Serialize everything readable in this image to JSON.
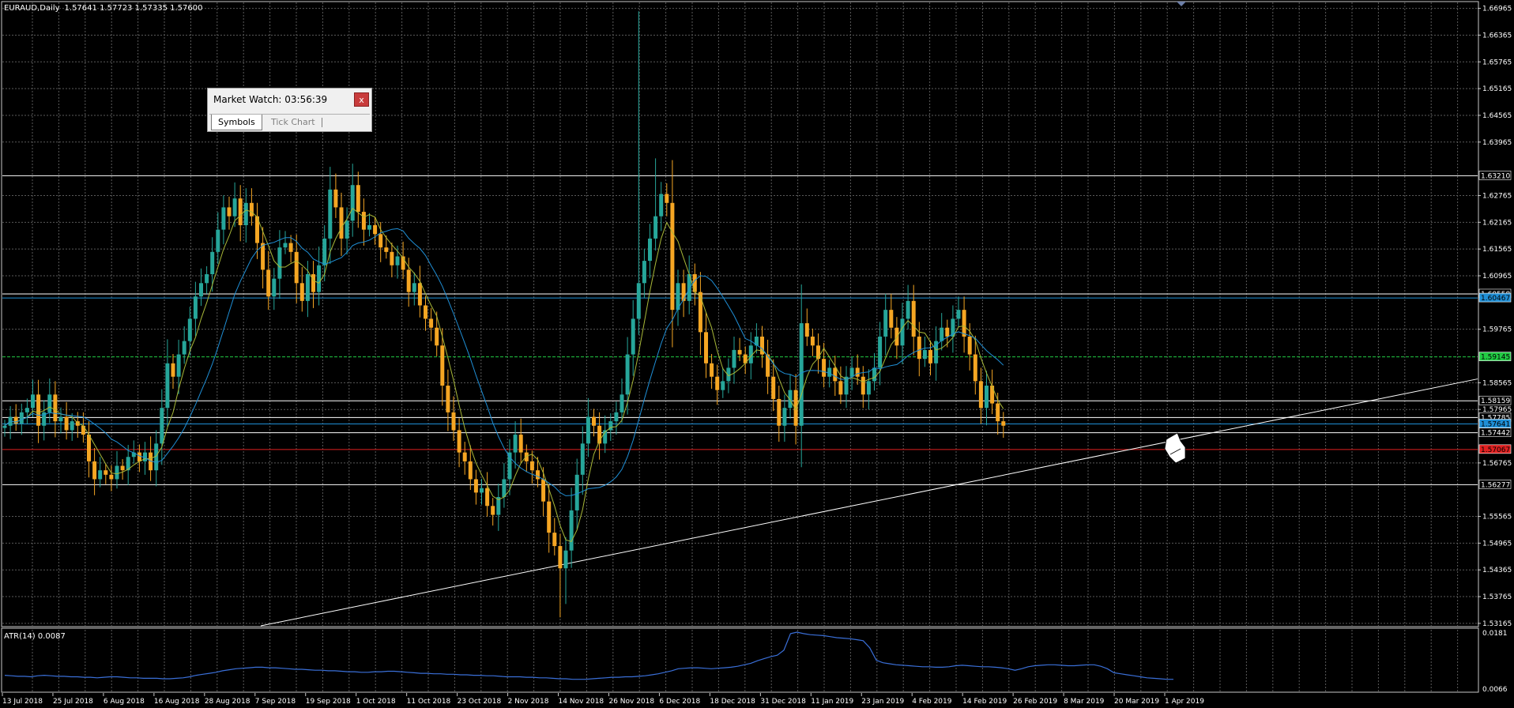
{
  "chart_info": {
    "symbol_label": "EURAUD,Daily",
    "ohlc": "1.57641 1.57723 1.57335 1.57600",
    "indicator_label": "ATR(14) 0.0087"
  },
  "market_watch": {
    "title": "Market Watch: 03:56:39",
    "close_glyph": "x",
    "tabs": [
      {
        "label": "Symbols",
        "active": true
      },
      {
        "label": "Tick Chart",
        "active": false
      }
    ]
  },
  "colors": {
    "background": "#000000",
    "grid": "#5a5a5a",
    "bull_candle": "#26a69a",
    "bear_candle": "#f5a623",
    "ma_fast": "#a8b838",
    "ma_slow": "#1f8fd6",
    "atr_line": "#3a6fd8",
    "trendline": "#ffffff"
  },
  "chart_data": {
    "type": "candlestick",
    "price_axis_ticks": [
      "1.66965",
      "1.66365",
      "1.65765",
      "1.65165",
      "1.64565",
      "1.63965",
      "1.62765",
      "1.62165",
      "1.61565",
      "1.60965",
      "1.59765",
      "1.58565",
      "1.57965",
      "1.56765",
      "1.55565",
      "1.54965",
      "1.54365",
      "1.53765",
      "1.53165"
    ],
    "ylim": [
      1.5311,
      1.671
    ],
    "date_labels": [
      "13 Jul 2018",
      "25 Jul 2018",
      "6 Aug 2018",
      "16 Aug 2018",
      "28 Aug 2018",
      "7 Sep 2018",
      "19 Sep 2018",
      "1 Oct 2018",
      "11 Oct 2018",
      "23 Oct 2018",
      "2 Nov 2018",
      "14 Nov 2018",
      "26 Nov 2018",
      "6 Dec 2018",
      "18 Dec 2018",
      "31 Dec 2018",
      "11 Jan 2019",
      "23 Jan 2019",
      "4 Feb 2019",
      "14 Feb 2019",
      "26 Feb 2019",
      "8 Mar 2019",
      "20 Mar 2019",
      "1 Apr 2019"
    ],
    "horizontal_levels": [
      {
        "price": 1.6321,
        "label": "1.63210",
        "color": "#ffffff"
      },
      {
        "price": 1.60558,
        "label": "1.60558",
        "color": "#ffffff"
      },
      {
        "price": 1.60467,
        "label": "1.60467",
        "color": "#1f8fd6"
      },
      {
        "price": 1.59145,
        "label": "1.59145",
        "color": "#22cc44"
      },
      {
        "price": 1.58159,
        "label": "1.58159",
        "color": "#ffffff"
      },
      {
        "price": 1.57785,
        "label": "1.57785",
        "color": "#ffffff"
      },
      {
        "price": 1.57641,
        "label": "1.57641",
        "color": "#1f8fd6"
      },
      {
        "price": 1.57442,
        "label": "1.57442",
        "color": "#ffffff"
      },
      {
        "price": 1.57067,
        "label": "1.57067",
        "color": "#e02020"
      },
      {
        "price": 1.56277,
        "label": "1.56277",
        "color": "#ffffff"
      }
    ],
    "trendline": {
      "start_price": 1.5311,
      "start_date": "7 Sep 2018",
      "end_price": 1.5865,
      "end_date": "after 1 Apr 2019"
    },
    "atr_axis_ticks": [
      "0.0181",
      "0.0066"
    ],
    "atr_current": "0.0087",
    "closes": [
      1.576,
      1.578,
      1.5765,
      1.579,
      1.58,
      1.583,
      1.576,
      1.579,
      1.583,
      1.577,
      1.578,
      1.575,
      1.577,
      1.576,
      1.574,
      1.568,
      1.564,
      1.566,
      1.565,
      1.564,
      1.567,
      1.566,
      1.569,
      1.57,
      1.568,
      1.57,
      1.566,
      1.572,
      1.58,
      1.59,
      1.587,
      1.592,
      1.595,
      1.6,
      1.605,
      1.608,
      1.61,
      1.615,
      1.62,
      1.625,
      1.623,
      1.627,
      1.621,
      1.626,
      1.623,
      1.617,
      1.611,
      1.605,
      1.609,
      1.616,
      1.617,
      1.615,
      1.608,
      1.604,
      1.61,
      1.606,
      1.612,
      1.618,
      1.629,
      1.625,
      1.618,
      1.622,
      1.63,
      1.624,
      1.62,
      1.621,
      1.619,
      1.616,
      1.615,
      1.612,
      1.614,
      1.611,
      1.606,
      1.608,
      1.603,
      1.6,
      1.598,
      1.594,
      1.585,
      1.579,
      1.575,
      1.57,
      1.568,
      1.564,
      1.561,
      1.562,
      1.558,
      1.556,
      1.56,
      1.564,
      1.57,
      1.574,
      1.57,
      1.568,
      1.566,
      1.564,
      1.559,
      1.552,
      1.549,
      1.544,
      1.548,
      1.557,
      1.565,
      1.572,
      1.578,
      1.576,
      1.572,
      1.575,
      1.577,
      1.579,
      1.583,
      1.592,
      1.6,
      1.608,
      1.613,
      1.618,
      1.623,
      1.628,
      1.626,
      1.602,
      1.608,
      1.604,
      1.61,
      1.606,
      1.597,
      1.59,
      1.587,
      1.584,
      1.586,
      1.589,
      1.593,
      1.592,
      1.59,
      1.594,
      1.596,
      1.592,
      1.587,
      1.582,
      1.576,
      1.58,
      1.584,
      1.576,
      1.599,
      1.596,
      1.594,
      1.591,
      1.587,
      1.589,
      1.586,
      1.583,
      1.587,
      1.589,
      1.587,
      1.583,
      1.586,
      1.589,
      1.596,
      1.602,
      1.598,
      1.594,
      1.6,
      1.604,
      1.596,
      1.591,
      1.593,
      1.59,
      1.595,
      1.598,
      1.596,
      1.6,
      1.602,
      1.596,
      1.592,
      1.586,
      1.58,
      1.585,
      1.581,
      1.577,
      1.576
    ],
    "atr": [
      0.0095,
      0.0094,
      0.0093,
      0.0093,
      0.0092,
      0.0094,
      0.0095,
      0.0094,
      0.0093,
      0.0093,
      0.0092,
      0.0092,
      0.0091,
      0.0091,
      0.009,
      0.0091,
      0.0092,
      0.0092,
      0.0091,
      0.009,
      0.009,
      0.0089,
      0.0089,
      0.0089,
      0.0088,
      0.0088,
      0.0089,
      0.009,
      0.0092,
      0.0095,
      0.0097,
      0.0099,
      0.0101,
      0.0104,
      0.0106,
      0.0108,
      0.0109,
      0.011,
      0.0111,
      0.0111,
      0.011,
      0.011,
      0.0109,
      0.0108,
      0.0107,
      0.0107,
      0.0106,
      0.0105,
      0.0105,
      0.0104,
      0.0104,
      0.0103,
      0.0102,
      0.0102,
      0.0101,
      0.0101,
      0.0102,
      0.0102,
      0.0103,
      0.0103,
      0.0102,
      0.0101,
      0.01,
      0.0099,
      0.0099,
      0.0098,
      0.0098,
      0.0097,
      0.0097,
      0.0096,
      0.0096,
      0.0095,
      0.0095,
      0.0094,
      0.0094,
      0.0093,
      0.0092,
      0.0092,
      0.0092,
      0.0091,
      0.0091,
      0.009,
      0.009,
      0.0089,
      0.0088,
      0.0088,
      0.0087,
      0.0087,
      0.0087,
      0.0088,
      0.0089,
      0.009,
      0.0091,
      0.0091,
      0.0092,
      0.0092,
      0.0093,
      0.0094,
      0.0096,
      0.0098,
      0.0101,
      0.0104,
      0.0108,
      0.0109,
      0.011,
      0.011,
      0.0109,
      0.0108,
      0.0109,
      0.011,
      0.0111,
      0.0113,
      0.0116,
      0.0119,
      0.0124,
      0.0128,
      0.0132,
      0.0135,
      0.0145,
      0.0178,
      0.0181,
      0.0178,
      0.0176,
      0.0175,
      0.0174,
      0.0172,
      0.017,
      0.0169,
      0.0168,
      0.0166,
      0.0164,
      0.015,
      0.0125,
      0.012,
      0.0118,
      0.0116,
      0.0115,
      0.0114,
      0.0113,
      0.0112,
      0.0112,
      0.0111,
      0.0111,
      0.0112,
      0.0114,
      0.0115,
      0.0114,
      0.0113,
      0.0112,
      0.0112,
      0.0111,
      0.011,
      0.0108,
      0.0105,
      0.0108,
      0.0112,
      0.0114,
      0.0115,
      0.0116,
      0.0116,
      0.0115,
      0.0114,
      0.0114,
      0.0115,
      0.0116,
      0.0116,
      0.0113,
      0.0108,
      0.01,
      0.0098,
      0.0096,
      0.0094,
      0.0092,
      0.009,
      0.0089,
      0.0088,
      0.0087,
      0.0087
    ]
  }
}
